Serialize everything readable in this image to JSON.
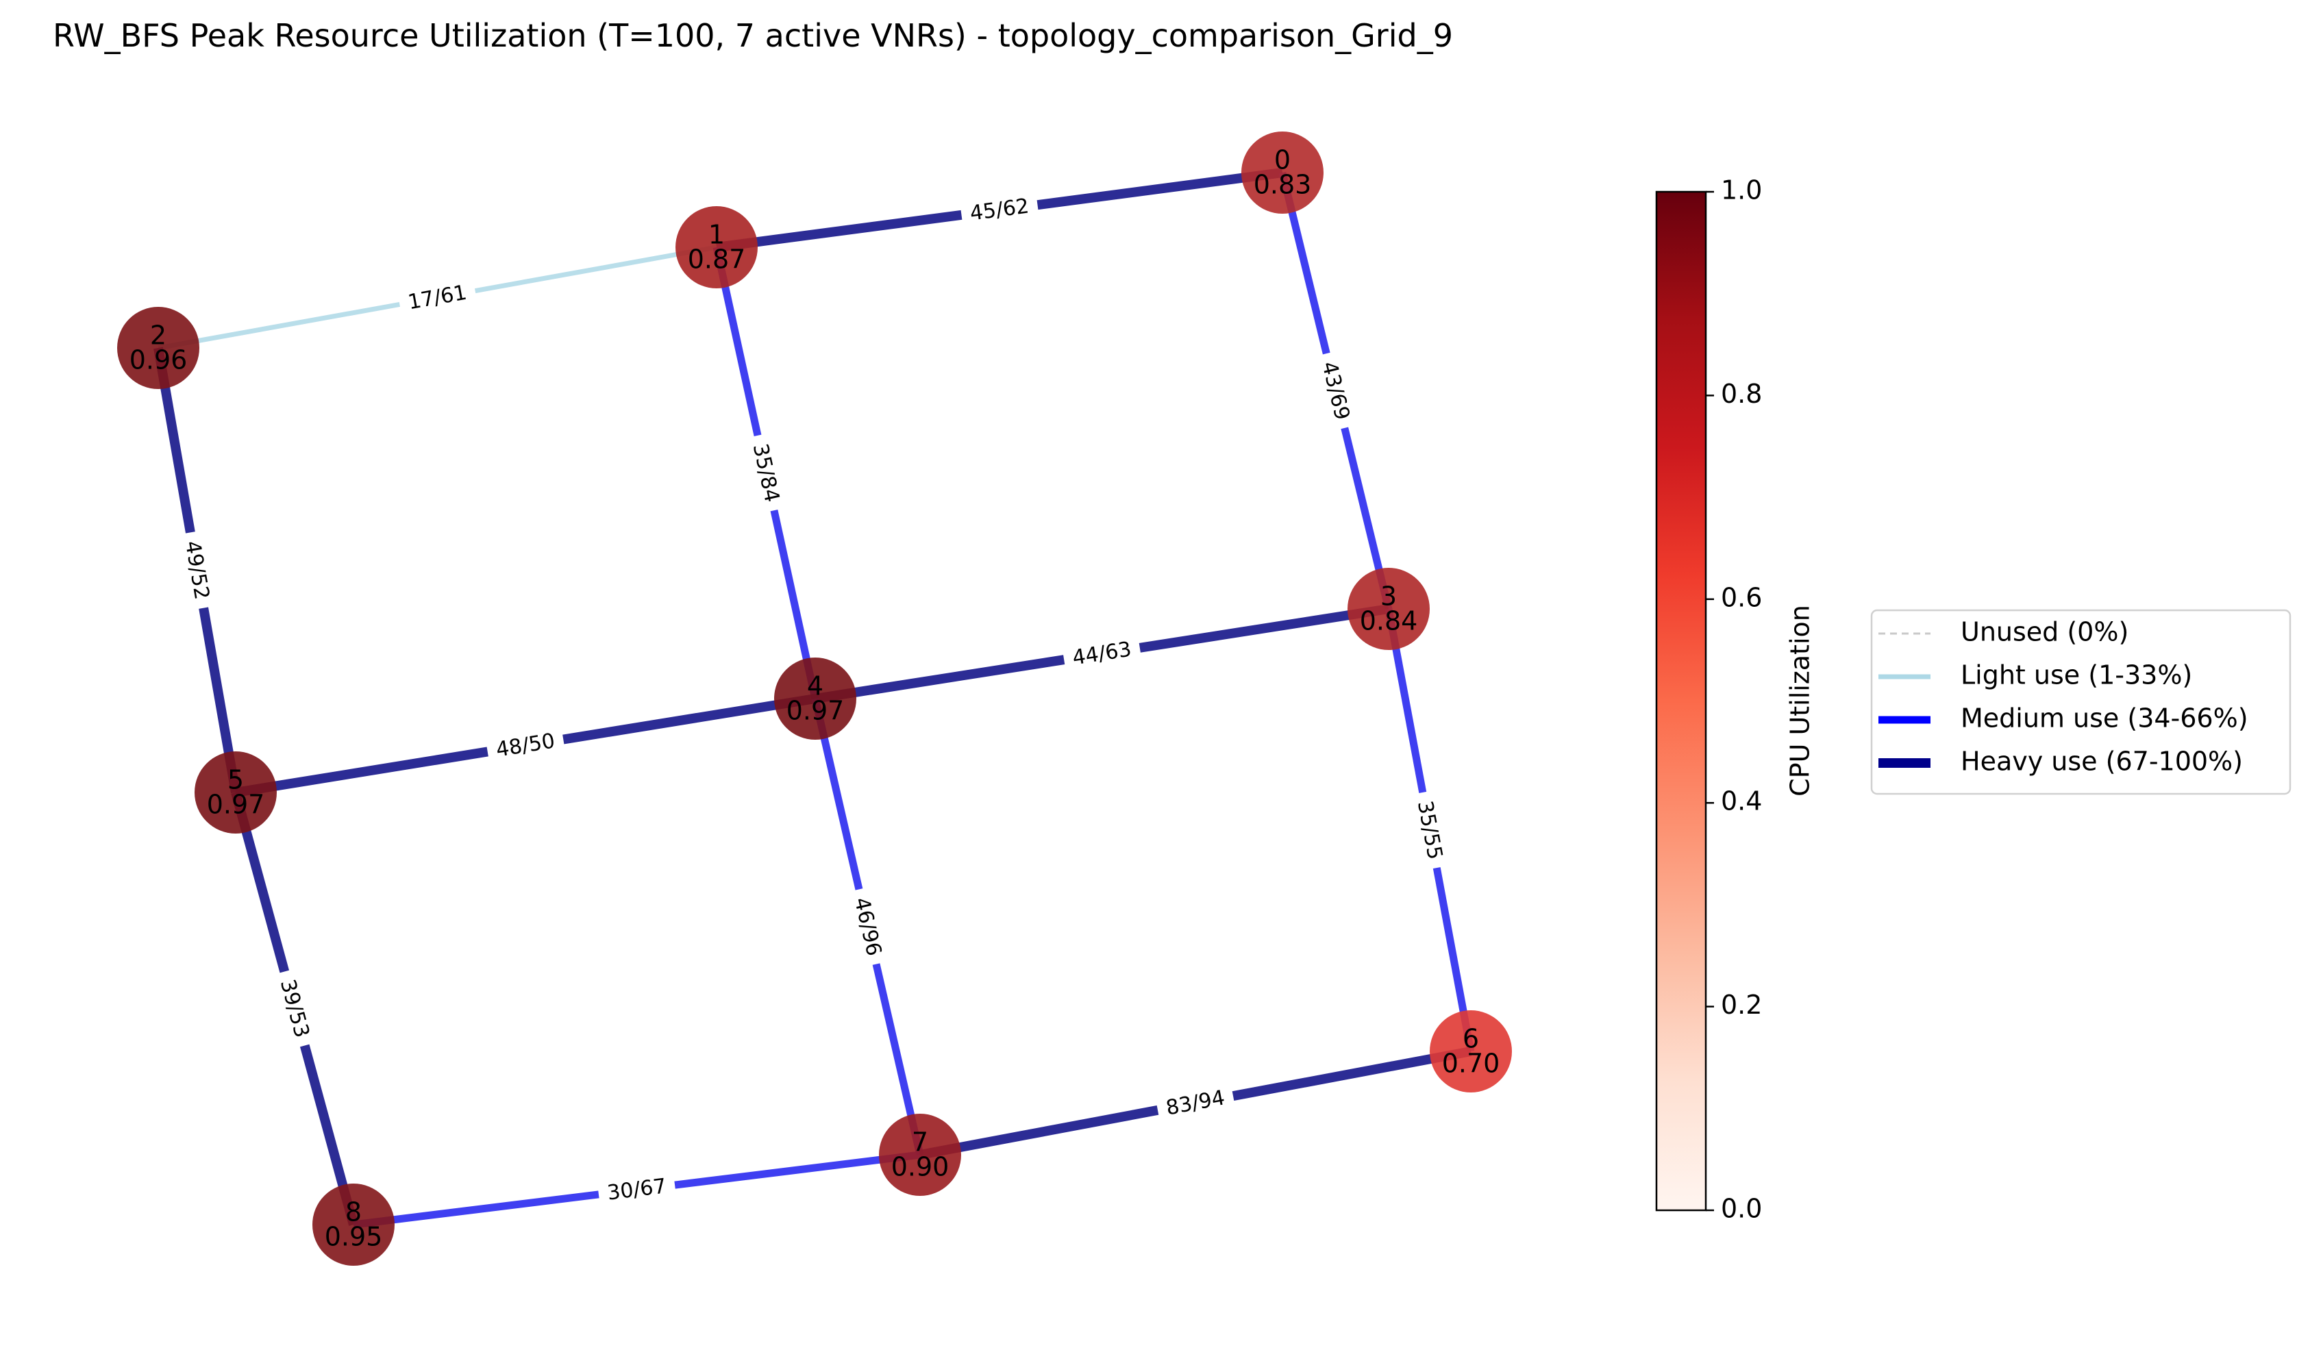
{
  "title": "RW_BFS Peak Resource Utilization (T=100, 7 active VNRs) - topology_comparison_Grid_9",
  "nodes": [
    {
      "id": "0",
      "util": "0.83",
      "color": "#b22b2b"
    },
    {
      "id": "1",
      "util": "0.87",
      "color": "#a82424"
    },
    {
      "id": "2",
      "util": "0.96",
      "color": "#7e1518"
    },
    {
      "id": "3",
      "util": "0.84",
      "color": "#ae2828"
    },
    {
      "id": "4",
      "util": "0.97",
      "color": "#7a1317"
    },
    {
      "id": "5",
      "util": "0.97",
      "color": "#7a1317"
    },
    {
      "id": "6",
      "util": "0.70",
      "color": "#e03a34"
    },
    {
      "id": "7",
      "util": "0.90",
      "color": "#9a1d20"
    },
    {
      "id": "8",
      "util": "0.95",
      "color": "#82161a"
    }
  ],
  "edges": [
    {
      "from": "1",
      "to": "0",
      "label": "45/62",
      "usage": "heavy"
    },
    {
      "from": "2",
      "to": "1",
      "label": "17/61",
      "usage": "light"
    },
    {
      "from": "0",
      "to": "3",
      "label": "43/69",
      "usage": "medium"
    },
    {
      "from": "1",
      "to": "4",
      "label": "35/84",
      "usage": "medium"
    },
    {
      "from": "2",
      "to": "5",
      "label": "49/52",
      "usage": "heavy"
    },
    {
      "from": "5",
      "to": "4",
      "label": "48/50",
      "usage": "heavy"
    },
    {
      "from": "4",
      "to": "3",
      "label": "44/63",
      "usage": "heavy"
    },
    {
      "from": "3",
      "to": "6",
      "label": "35/55",
      "usage": "medium"
    },
    {
      "from": "4",
      "to": "7",
      "label": "46/96",
      "usage": "medium"
    },
    {
      "from": "5",
      "to": "8",
      "label": "39/53",
      "usage": "heavy"
    },
    {
      "from": "8",
      "to": "7",
      "label": "30/67",
      "usage": "medium"
    },
    {
      "from": "7",
      "to": "6",
      "label": "83/94",
      "usage": "heavy"
    }
  ],
  "colorbar": {
    "label": "CPU Utilization",
    "ticks": [
      "0.0",
      "0.2",
      "0.4",
      "0.6",
      "0.8",
      "1.0"
    ],
    "colormap": "Reds",
    "range": [
      0,
      1
    ]
  },
  "legend": {
    "placement": "right",
    "items": [
      {
        "label": "Unused (0%)",
        "color": "#c9c9c9",
        "style": "dashed"
      },
      {
        "label": "Light use (1-33%)",
        "color": "#add8e6",
        "style": "solid"
      },
      {
        "label": "Medium use (34-66%)",
        "color": "#0000ff",
        "style": "solid"
      },
      {
        "label": "Heavy use (67-100%)",
        "color": "#00008b",
        "style": "solid"
      }
    ]
  },
  "usage_colors": {
    "light": "#add8e6",
    "medium": "#2a2af0",
    "heavy": "#15158a"
  }
}
